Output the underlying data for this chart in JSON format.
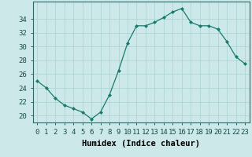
{
  "x": [
    0,
    1,
    2,
    3,
    4,
    5,
    6,
    7,
    8,
    9,
    10,
    11,
    12,
    13,
    14,
    15,
    16,
    17,
    18,
    19,
    20,
    21,
    22,
    23
  ],
  "y": [
    25,
    24,
    22.5,
    21.5,
    21,
    20.5,
    19.5,
    20.5,
    23,
    26.5,
    30.5,
    33,
    33,
    33.5,
    34.2,
    35,
    35.5,
    33.5,
    33,
    33,
    32.5,
    30.7,
    28.5,
    27.5
  ],
  "line_color": "#1a7a6e",
  "marker_color": "#1a7a6e",
  "bg_color": "#cce8e8",
  "grid_color": "#b0d4d4",
  "xlabel": "Humidex (Indice chaleur)",
  "xlim": [
    -0.5,
    23.5
  ],
  "ylim": [
    19.0,
    36.5
  ],
  "yticks": [
    20,
    22,
    24,
    26,
    28,
    30,
    32,
    34
  ],
  "xticks": [
    0,
    1,
    2,
    3,
    4,
    5,
    6,
    7,
    8,
    9,
    10,
    11,
    12,
    13,
    14,
    15,
    16,
    17,
    18,
    19,
    20,
    21,
    22,
    23
  ],
  "xlabel_fontsize": 7.5,
  "tick_fontsize": 6.5
}
